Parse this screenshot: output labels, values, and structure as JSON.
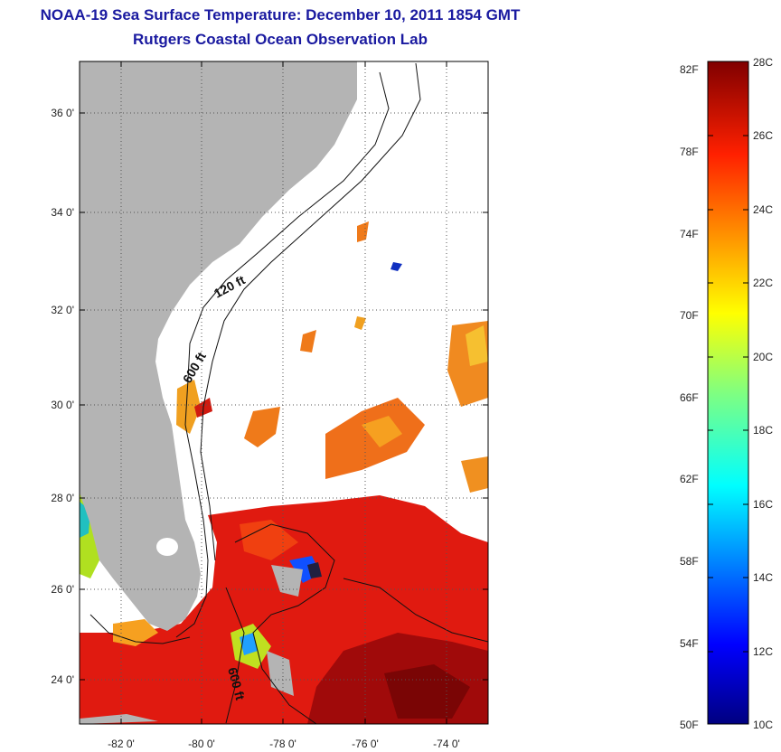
{
  "title": {
    "line1": "NOAA-19 Sea Surface Temperature:  December 10, 2011 1854 GMT",
    "line2": "Rutgers Coastal Ocean Observation Lab"
  },
  "map": {
    "lon_ticks": [
      "-82 0'",
      "-80 0'",
      "-78 0'",
      "-76 0'",
      "-74 0'"
    ],
    "lat_ticks": [
      "36 0'",
      "34 0'",
      "32 0'",
      "30 0'",
      "28 0'",
      "26 0'",
      "24 0'"
    ],
    "contour_labels": [
      "120 ft",
      "600 ft",
      "600 ft"
    ],
    "colors": {
      "land": "#b4b4b4",
      "ocean": "#ffffff"
    }
  },
  "colorbar": {
    "fahrenheit": [
      "82F",
      "78F",
      "74F",
      "70F",
      "66F",
      "62F",
      "58F",
      "54F",
      "50F"
    ],
    "celsius": [
      "28C",
      "26C",
      "24C",
      "22C",
      "20C",
      "18C",
      "16C",
      "14C",
      "12C",
      "10C"
    ],
    "range_c": [
      10,
      28
    ]
  }
}
